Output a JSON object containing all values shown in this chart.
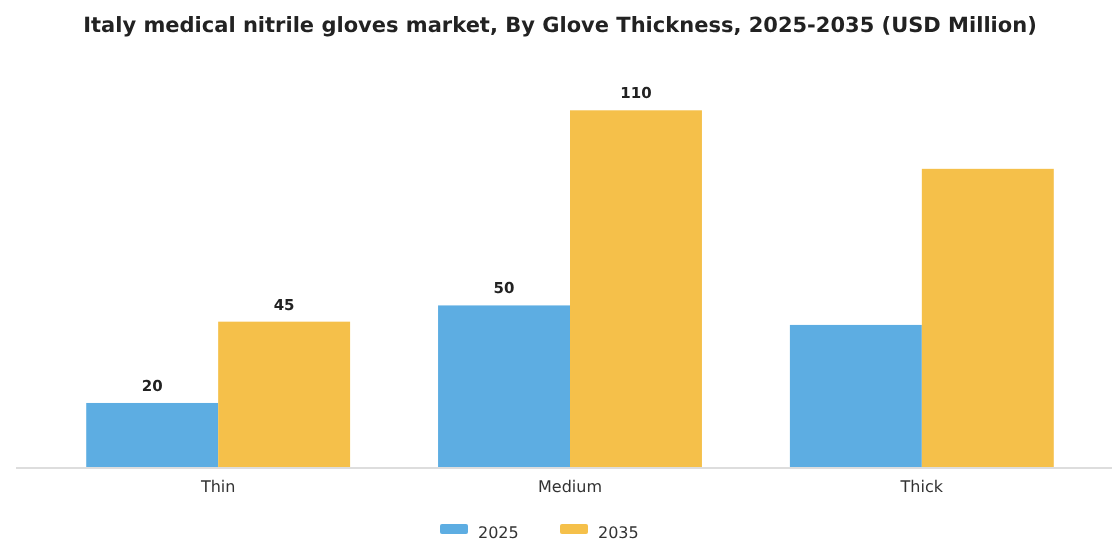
{
  "chart_data": {
    "type": "bar",
    "title": "Italy medical nitrile gloves market, By Glove Thickness, 2025-2035 (USD Million)",
    "categories": [
      "Thin",
      "Medium",
      "Thick"
    ],
    "series": [
      {
        "name": "2025",
        "color": "#5dade2",
        "values": [
          20,
          50,
          44
        ],
        "value_labels": [
          "20",
          "50",
          null
        ]
      },
      {
        "name": "2035",
        "color": "#f5c04a",
        "values": [
          45,
          110,
          92
        ],
        "value_labels": [
          "45",
          "110",
          null
        ]
      }
    ],
    "legend": "bottom",
    "grid": false
  }
}
